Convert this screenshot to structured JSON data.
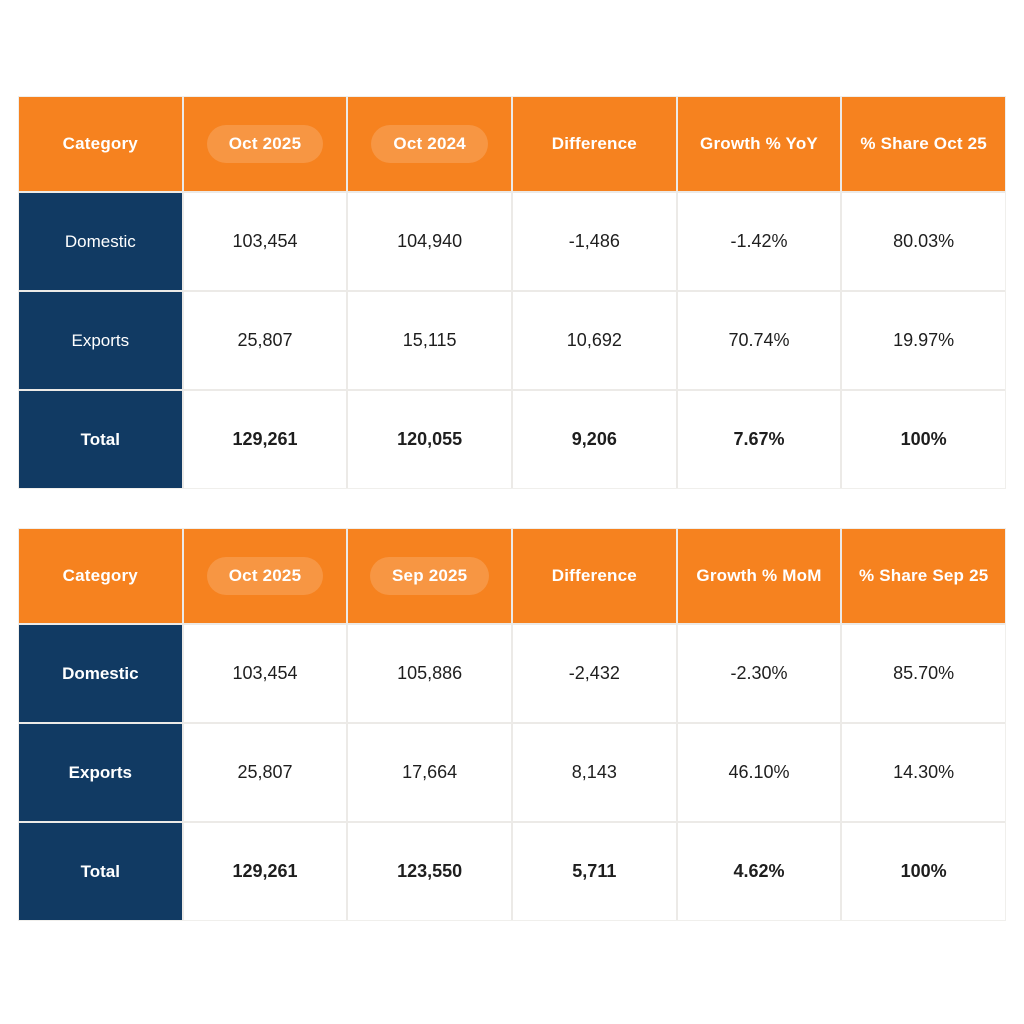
{
  "colors": {
    "header_orange": "#f6821f",
    "header_pill_overlay": "rgba(255,255,255,0.16)",
    "category_navy": "#113a63",
    "header_text": "#ffffff",
    "body_text": "#1e1e1e",
    "grid_line": "#eceae7",
    "page_background": "#ffffff"
  },
  "tables": [
    {
      "name": "year-over-year-table",
      "headers": [
        {
          "label": "Category",
          "pill": false
        },
        {
          "label": "Oct 2025",
          "pill": true
        },
        {
          "label": "Oct 2024",
          "pill": true
        },
        {
          "label": "Difference",
          "pill": false
        },
        {
          "label": "Growth % YoY",
          "pill": false
        },
        {
          "label": "% Share Oct 25",
          "pill": false
        }
      ],
      "rows": [
        {
          "category": "Domestic",
          "cells": [
            "103,454",
            "104,940",
            "-1,486",
            "-1.42%",
            "80.03%"
          ]
        },
        {
          "category": "Exports",
          "cells": [
            "25,807",
            "15,115",
            "10,692",
            "70.74%",
            "19.97%"
          ]
        },
        {
          "category": "Total",
          "cells": [
            "129,261",
            "120,055",
            "9,206",
            "7.67%",
            "100%"
          ]
        }
      ]
    },
    {
      "name": "month-over-month-table",
      "headers": [
        {
          "label": "Category",
          "pill": false
        },
        {
          "label": "Oct 2025",
          "pill": true
        },
        {
          "label": "Sep 2025",
          "pill": true
        },
        {
          "label": "Difference",
          "pill": false
        },
        {
          "label": "Growth % MoM",
          "pill": false
        },
        {
          "label": "% Share Sep 25",
          "pill": false
        }
      ],
      "rows": [
        {
          "category": "Domestic",
          "cells": [
            "103,454",
            "105,886",
            "-2,432",
            "-2.30%",
            "85.70%"
          ]
        },
        {
          "category": "Exports",
          "cells": [
            "25,807",
            "17,664",
            "8,143",
            "46.10%",
            "14.30%"
          ]
        },
        {
          "category": "Total",
          "cells": [
            "129,261",
            "123,550",
            "5,711",
            "4.62%",
            "100%"
          ]
        }
      ]
    }
  ],
  "chart_data": [
    {
      "type": "table",
      "title": "October 2025 vs October 2024 (YoY)",
      "columns": [
        "Category",
        "Oct 2025",
        "Oct 2024",
        "Difference",
        "Growth % YoY",
        "% Share Oct 25"
      ],
      "rows": [
        [
          "Domestic",
          103454,
          104940,
          -1486,
          "-1.42%",
          "80.03%"
        ],
        [
          "Exports",
          25807,
          15115,
          10692,
          "70.74%",
          "19.97%"
        ],
        [
          "Total",
          129261,
          120055,
          9206,
          "7.67%",
          "100%"
        ]
      ]
    },
    {
      "type": "table",
      "title": "October 2025 vs September 2025 (MoM)",
      "columns": [
        "Category",
        "Oct 2025",
        "Sep 2025",
        "Difference",
        "Growth % MoM",
        "% Share Sep 25"
      ],
      "rows": [
        [
          "Domestic",
          103454,
          105886,
          -2432,
          "-2.30%",
          "85.70%"
        ],
        [
          "Exports",
          25807,
          17664,
          8143,
          "46.10%",
          "14.30%"
        ],
        [
          "Total",
          129261,
          123550,
          5711,
          "4.62%",
          "100%"
        ]
      ]
    }
  ]
}
